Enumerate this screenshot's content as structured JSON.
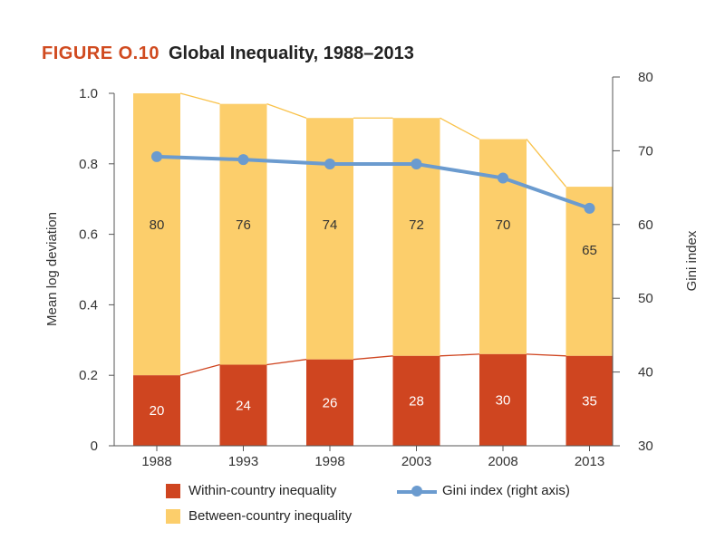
{
  "figure": {
    "label": "FIGURE O.10",
    "title": "Global Inequality, 1988–2013"
  },
  "colors": {
    "within": "#cf4520",
    "between": "#fcce6b",
    "gini": "#6b9bcf",
    "connector": "#f9c24a",
    "title_label": "#d04a1f"
  },
  "chart_data": {
    "type": "bar",
    "stacked": true,
    "categories": [
      "1988",
      "1993",
      "1998",
      "2003",
      "2008",
      "2013"
    ],
    "series": [
      {
        "name": "Within-country inequality",
        "axis": "left",
        "values": [
          0.2,
          0.23,
          0.245,
          0.255,
          0.26,
          0.255
        ],
        "labels": [
          "20",
          "24",
          "26",
          "28",
          "30",
          "35"
        ]
      },
      {
        "name": "Between-country inequality",
        "axis": "left",
        "values": [
          0.8,
          0.74,
          0.685,
          0.675,
          0.61,
          0.48
        ],
        "labels": [
          "80",
          "76",
          "74",
          "72",
          "70",
          "65"
        ]
      },
      {
        "name": "Gini index (right axis)",
        "type": "line",
        "axis": "right",
        "values": [
          69.2,
          68.8,
          68.2,
          68.2,
          66.3,
          62.2
        ]
      }
    ],
    "ylabel": "Mean log deviation",
    "ylim": [
      0,
      1.0
    ],
    "yticks": [
      "0",
      "0.2",
      "0.4",
      "0.6",
      "0.8",
      "1.0"
    ],
    "y2label": "Gini index",
    "y2lim": [
      30,
      80
    ],
    "y2ticks": [
      "30",
      "40",
      "50",
      "60",
      "70",
      "80"
    ],
    "grid": false,
    "legend_position": "bottom"
  }
}
